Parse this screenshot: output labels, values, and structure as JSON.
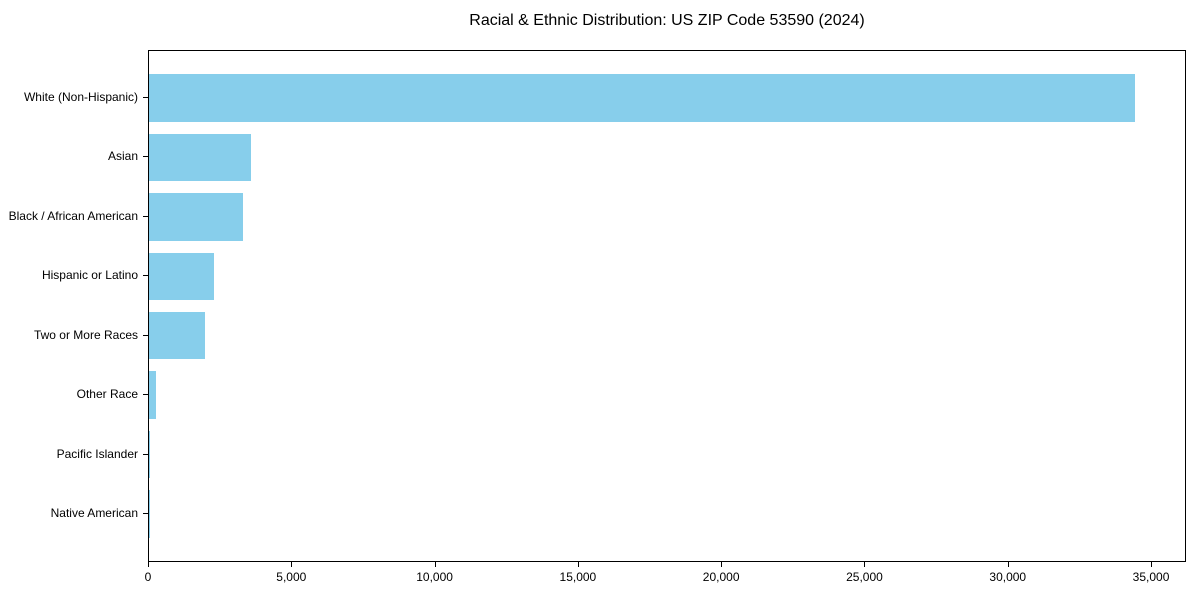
{
  "chart_data": {
    "type": "bar",
    "orientation": "horizontal",
    "title": "Racial & Ethnic Distribution: US ZIP Code 53590 (2024)",
    "xlabel": "",
    "ylabel": "",
    "categories": [
      "White (Non-Hispanic)",
      "Asian",
      "Black / African American",
      "Hispanic or Latino",
      "Two or More Races",
      "Other Race",
      "Pacific Islander",
      "Native American"
    ],
    "values": [
      34400,
      3560,
      3280,
      2280,
      1970,
      240,
      30,
      10
    ],
    "xlim": [
      0,
      36150
    ],
    "x_ticks": [
      0,
      5000,
      10000,
      15000,
      20000,
      25000,
      30000,
      35000
    ],
    "x_tick_labels": [
      "0",
      "5,000",
      "10,000",
      "15,000",
      "20,000",
      "25,000",
      "30,000",
      "35,000"
    ],
    "bar_color": "#87CEEB",
    "background_color": "#ffffff",
    "axis_color": "#000000",
    "grid": false,
    "legend": null
  }
}
